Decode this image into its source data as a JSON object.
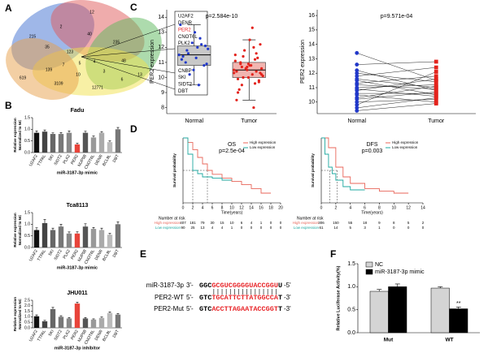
{
  "panel_labels": [
    "A",
    "B",
    "C",
    "D",
    "E",
    "F"
  ],
  "venn": {
    "numbers": [
      12,
      215,
      2,
      35,
      123,
      40,
      235,
      7,
      5,
      4,
      48,
      3,
      10,
      139,
      619,
      3109,
      12771,
      13,
      6
    ]
  },
  "gene_list": {
    "genes": [
      "U2AF2",
      "DENR",
      "PER2",
      "CNOT6L",
      "PLK2",
      "NUP58",
      "BCL9L",
      "TTPAL",
      "CNBP",
      "SKI",
      "SIDT2",
      "DBT"
    ],
    "highlight_index": 2,
    "highlight_color": "#e8262a"
  },
  "chart_data": [
    {
      "type": "bar",
      "title": "Fadu",
      "categories": [
        "U2AF2",
        "TTPAL",
        "SKI",
        "SIDT2",
        "PLK2",
        "PER2",
        "NUP58",
        "CNOT6L",
        "DENR",
        "BCL9L",
        "DBT"
      ],
      "values": [
        0.85,
        0.9,
        0.8,
        0.8,
        0.85,
        0.35,
        0.85,
        0.65,
        0.85,
        0.45,
        1.0
      ],
      "errors": [
        0.08,
        0.07,
        0.05,
        0.06,
        0.08,
        0.05,
        0.07,
        0.06,
        0.05,
        0.05,
        0.08
      ],
      "colors": [
        "#111111",
        "#444444",
        "#666666",
        "#777777",
        "#888888",
        "#e8443a",
        "#555555",
        "#999999",
        "#aaaaaa",
        "#bbbbbb",
        "#777777"
      ],
      "ylim": [
        0,
        1.5
      ],
      "yticks": [
        {
          "value": 0,
          "label": "0.0"
        },
        0.5,
        {
          "value": 1,
          "label": "1.0"
        },
        1.5
      ],
      "xlabel": "miR-3187-3p mimic",
      "ylabel": [
        "Relative expression",
        "Normalized to NC"
      ]
    },
    {
      "type": "bar",
      "title": "Tca8113",
      "categories": [
        "U2AF2",
        "TTPAL",
        "SKI",
        "SIDT2",
        "PLK2",
        "PER2",
        "NUP58",
        "CNOT6L",
        "DENR",
        "BCL9L",
        "DBT"
      ],
      "values": [
        0.75,
        1.05,
        0.75,
        0.9,
        0.6,
        0.6,
        0.9,
        0.8,
        0.75,
        0.55,
        1.0
      ],
      "errors": [
        0.1,
        0.15,
        0.08,
        0.1,
        0.07,
        0.08,
        0.12,
        0.06,
        0.08,
        0.06,
        0.1
      ],
      "colors": [
        "#111111",
        "#444444",
        "#666666",
        "#777777",
        "#888888",
        "#e8443a",
        "#555555",
        "#999999",
        "#aaaaaa",
        "#bbbbbb",
        "#777777"
      ],
      "ylim": [
        0,
        1.5
      ],
      "yticks": [
        {
          "value": 0,
          "label": "0.0"
        },
        0.5,
        {
          "value": 1,
          "label": "1.0"
        },
        1.5
      ],
      "xlabel": "miR-3187-3p mimic",
      "ylabel": [
        "Relative expression",
        "Normalized to NC"
      ]
    },
    {
      "type": "bar",
      "title": "JHU011",
      "categories": [
        "U2AF2",
        "TTPAL",
        "SKI",
        "SIDT2",
        "PLK2",
        "PER2",
        "NUP58",
        "CNOT6L",
        "DENR",
        "BCL9L",
        "DBT"
      ],
      "values": [
        1.05,
        0.6,
        1.7,
        1.0,
        0.85,
        2.2,
        0.85,
        0.75,
        0.9,
        1.35,
        1.2
      ],
      "errors": [
        0.12,
        0.08,
        0.15,
        0.1,
        0.08,
        0.12,
        0.08,
        0.06,
        0.08,
        0.1,
        0.1
      ],
      "colors": [
        "#111111",
        "#444444",
        "#666666",
        "#777777",
        "#888888",
        "#e8443a",
        "#555555",
        "#999999",
        "#aaaaaa",
        "#bbbbbb",
        "#777777"
      ],
      "ylim": [
        0,
        2.5
      ],
      "yticks": [
        {
          "value": 0,
          "label": "0.0"
        },
        0.5,
        {
          "value": 1,
          "label": "1.0"
        },
        1.5,
        {
          "value": 2,
          "label": "2.0"
        },
        2.5
      ],
      "xlabel": "miR-3187-3p inhibitor",
      "ylabel": [
        "Relative expression",
        "Normalized to NC"
      ]
    },
    {
      "type": "box",
      "subtitle": "p=2.584e-10",
      "ylabel": "PER2 expression",
      "categories": [
        "Normal",
        "Tumor"
      ],
      "ylim": [
        7.6,
        14.5
      ],
      "yticks": [
        8,
        9,
        10,
        11,
        12,
        13,
        14
      ],
      "groups": [
        {
          "color": "#2138c9",
          "box_fill": "#c8c8c8",
          "q1": 10.8,
          "median": 11.5,
          "q3": 12.1,
          "whisker_low": 9.5,
          "whisker_high": 13.5,
          "values": [
            11.5,
            12.0,
            11.0,
            10.8,
            12.3,
            13.5,
            9.5,
            11.8,
            12.1,
            10.5,
            11.2,
            12.6,
            11.6,
            10.9,
            13.0,
            11.4,
            12.2,
            10.2,
            11.9,
            11.3
          ]
        },
        {
          "color": "#e3231c",
          "box_fill": "#f2b5b0",
          "q1": 10.0,
          "median": 10.5,
          "q3": 11.0,
          "whisker_low": 8.5,
          "whisker_high": 12.5,
          "values": [
            10.5,
            10.2,
            11.0,
            9.8,
            10.7,
            11.5,
            12.0,
            9.5,
            10.3,
            10.9,
            8.5,
            11.2,
            10.0,
            10.6,
            12.5,
            9.9,
            10.4,
            11.8,
            10.1,
            10.8,
            9.2,
            11.3,
            10.6,
            10.3,
            13.3,
            10.9,
            9.7,
            10.5,
            11.1,
            8.0,
            10.7,
            12.2,
            10.0,
            10.4,
            9.6,
            11.4,
            10.2,
            10.8,
            9.0,
            11.6
          ]
        }
      ]
    },
    {
      "type": "paired",
      "subtitle": "p=9.571e-04",
      "ylabel": "PER2 expression",
      "categories": [
        "Normal",
        "Tumor"
      ],
      "ylim": [
        9.2,
        16.4
      ],
      "yticks": [
        10,
        11,
        12,
        13,
        14,
        15,
        16
      ],
      "groups": [
        {
          "color": "#2138c9",
          "values": [
            13.4,
            12.6,
            12.2,
            12.0,
            11.8,
            11.6,
            11.5,
            11.3,
            11.2,
            11.0,
            10.9,
            10.8,
            10.6,
            10.5,
            10.3,
            10.2,
            10.0,
            9.8,
            9.6,
            9.4
          ]
        },
        {
          "color": "#e3231c",
          "values": [
            11.5,
            12.8,
            10.8,
            11.4,
            12.4,
            11.0,
            10.5,
            11.8,
            10.9,
            11.2,
            10.4,
            11.6,
            10.6,
            10.0,
            11.1,
            10.7,
            10.2,
            12.1,
            10.3,
            9.9
          ]
        }
      ]
    },
    {
      "type": "km",
      "title": "OS",
      "subtitle": "p=2.5e-04",
      "ylabel": "Survival probability",
      "xlabel": "Time(years)",
      "xlim": [
        0,
        20
      ],
      "xticks": [
        0,
        2,
        4,
        6,
        8,
        10,
        12,
        14,
        16,
        18,
        20
      ],
      "ylim": [
        0,
        1
      ],
      "median_level": 0.5,
      "median_lines": [
        2,
        5
      ],
      "series": [
        {
          "name": "High expression",
          "color": "#e8665a",
          "x": [
            0,
            1,
            2,
            3,
            4,
            5,
            6,
            8,
            10,
            12,
            14,
            16,
            18
          ],
          "values": [
            1,
            0.93,
            0.82,
            0.7,
            0.6,
            0.5,
            0.44,
            0.38,
            0.33,
            0.28,
            0.22,
            0.15,
            0.15
          ]
        },
        {
          "name": "Low expression",
          "color": "#1fa8a0",
          "x": [
            0,
            1,
            2,
            3,
            4,
            6,
            8,
            10
          ],
          "values": [
            1,
            0.75,
            0.5,
            0.45,
            0.4,
            0.38,
            0.35,
            0.35
          ]
        }
      ],
      "risk_table": {
        "title": "Number at risk",
        "rows": [
          {
            "name": "High expression",
            "values": [
              407,
              181,
              79,
              30,
              15,
              10,
              6,
              4,
              1,
              0,
              0
            ]
          },
          {
            "name": "Low expression",
            "values": [
              90,
              25,
              13,
              4,
              4,
              1,
              0,
              0,
              0,
              0,
              0
            ]
          }
        ]
      }
    },
    {
      "type": "km",
      "title": "DFS",
      "subtitle": "p=0.003",
      "ylabel": "Survival probability",
      "xlabel": "Time(years)",
      "xlim": [
        0,
        14
      ],
      "xticks": [
        0,
        2,
        4,
        6,
        8,
        10,
        12,
        14
      ],
      "ylim": [
        0,
        1
      ],
      "median_level": 0.5,
      "median_lines": [
        1.2,
        2.2
      ],
      "series": [
        {
          "name": "High expression",
          "color": "#e8665a",
          "x": [
            0,
            1,
            2,
            3,
            4,
            6,
            8,
            10,
            12
          ],
          "values": [
            1,
            0.85,
            0.55,
            0.4,
            0.3,
            0.22,
            0.18,
            0.15,
            0.15
          ]
        },
        {
          "name": "Low expression",
          "color": "#1fa8a0",
          "x": [
            0,
            0.5,
            1,
            1.5,
            2,
            3,
            4,
            6
          ],
          "values": [
            1,
            0.75,
            0.55,
            0.45,
            0.35,
            0.25,
            0.2,
            0.2
          ]
        }
      ],
      "risk_table": {
        "title": "Number at risk",
        "rows": [
          {
            "name": "High expression",
            "values": [
              306,
              150,
              55,
              18,
              9,
              8,
              5,
              2
            ]
          },
          {
            "name": "Low expression",
            "values": [
              61,
              14,
              5,
              3,
              1,
              0,
              0,
              0
            ]
          }
        ]
      }
    },
    {
      "type": "grouped_bar",
      "ylabel": "Relative Luciferase Activity(%)",
      "categories": [
        "Mut",
        "WT"
      ],
      "ylim": [
        0,
        1.5
      ],
      "yticks": [
        {
          "value": 0,
          "label": "0.0"
        },
        0.5,
        {
          "value": 1,
          "label": "1.0"
        },
        1.5
      ],
      "significance_label": "**",
      "series": [
        {
          "name": "NC",
          "color": "#d4d4d4",
          "values": [
            0.9,
            0.97
          ],
          "errors": [
            0.04,
            0.03
          ]
        },
        {
          "name": "miR-3187-3p mimic",
          "color": "#000000",
          "values": [
            1.0,
            0.52
          ],
          "errors": [
            0.06,
            0.04
          ]
        }
      ]
    }
  ],
  "sequences": {
    "highlight_color": "#e8262a",
    "rows": [
      {
        "name": "miR-3187-3p",
        "left": "3'-",
        "parts": [
          "GGC",
          "GCGUCGGGGUACCGGU",
          "U"
        ],
        "right": "-5'"
      },
      {
        "name": "PER2-WT",
        "left": "5'-",
        "parts": [
          "GTC",
          "TGCATTCTTATGGCCA",
          "T"
        ],
        "right": "-3'"
      },
      {
        "name": "PER2-Mut",
        "left": "5'-",
        "parts": [
          "GTC",
          "ACCTTAGAATACCGGT",
          "T"
        ],
        "right": "-3'"
      }
    ]
  }
}
